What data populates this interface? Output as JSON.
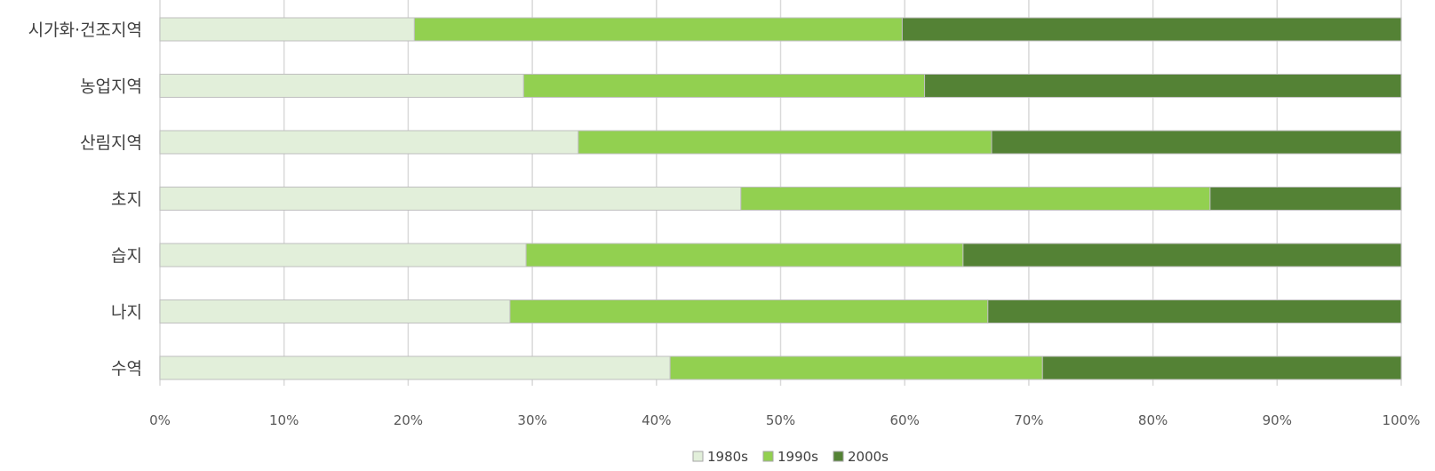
{
  "chart_data": {
    "type": "bar",
    "orientation": "horizontal",
    "stacked": "percent",
    "categories": [
      "시가화·건조지역",
      "농업지역",
      "산림지역",
      "초지",
      "습지",
      "나지",
      "수역"
    ],
    "series": [
      {
        "name": "1980s",
        "color": "#e2efda",
        "values": [
          20.5,
          29.3,
          33.7,
          46.8,
          29.5,
          28.2,
          41.1
        ]
      },
      {
        "name": "1990s",
        "color": "#92d050",
        "values": [
          39.3,
          32.3,
          33.3,
          37.8,
          35.2,
          38.5,
          30.0
        ]
      },
      {
        "name": "2000s",
        "color": "#548235",
        "values": [
          40.2,
          38.4,
          33.0,
          15.4,
          35.3,
          33.3,
          28.9
        ]
      }
    ],
    "xticks": [
      "0%",
      "10%",
      "20%",
      "30%",
      "40%",
      "50%",
      "60%",
      "70%",
      "80%",
      "90%",
      "100%"
    ],
    "xlim": [
      0,
      100
    ],
    "grid": "vertical",
    "legend": "bottom"
  }
}
